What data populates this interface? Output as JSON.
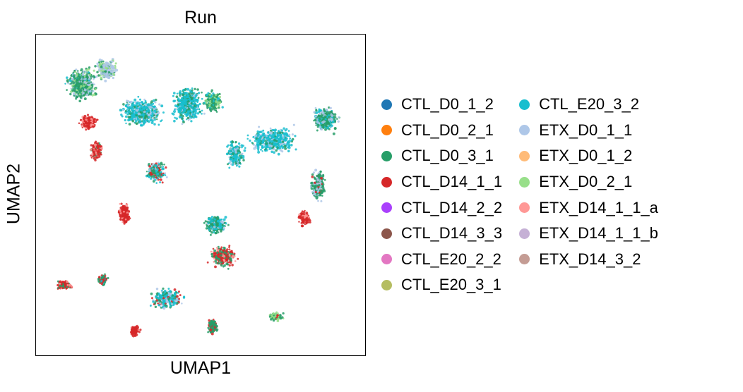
{
  "chart_data": {
    "type": "scatter",
    "title": "Run",
    "xlabel": "UMAP1",
    "ylabel": "UMAP2",
    "grid": false,
    "ticks": false,
    "legend_position": "right",
    "legend_columns": 2,
    "series": [
      {
        "name": "CTL_D0_1_2",
        "color": "#1f77b4"
      },
      {
        "name": "CTL_D0_2_1",
        "color": "#ff7f0e"
      },
      {
        "name": "CTL_D0_3_1",
        "color": "#279e68"
      },
      {
        "name": "CTL_D14_1_1",
        "color": "#d62728"
      },
      {
        "name": "CTL_D14_2_2",
        "color": "#aa40fc"
      },
      {
        "name": "CTL_D14_3_3",
        "color": "#8c564b"
      },
      {
        "name": "CTL_E20_2_2",
        "color": "#e377c2"
      },
      {
        "name": "CTL_E20_3_1",
        "color": "#b5bd61"
      },
      {
        "name": "CTL_E20_3_2",
        "color": "#17becf"
      },
      {
        "name": "ETX_D0_1_1",
        "color": "#aec7e8"
      },
      {
        "name": "ETX_D0_1_2",
        "color": "#ffbb78"
      },
      {
        "name": "ETX_D0_2_1",
        "color": "#98df8a"
      },
      {
        "name": "ETX_D14_1_1_a",
        "color": "#ff9896"
      },
      {
        "name": "ETX_D14_1_1_b",
        "color": "#c5b0d5"
      },
      {
        "name": "ETX_D14_3_2",
        "color": "#c49c94"
      }
    ]
  }
}
